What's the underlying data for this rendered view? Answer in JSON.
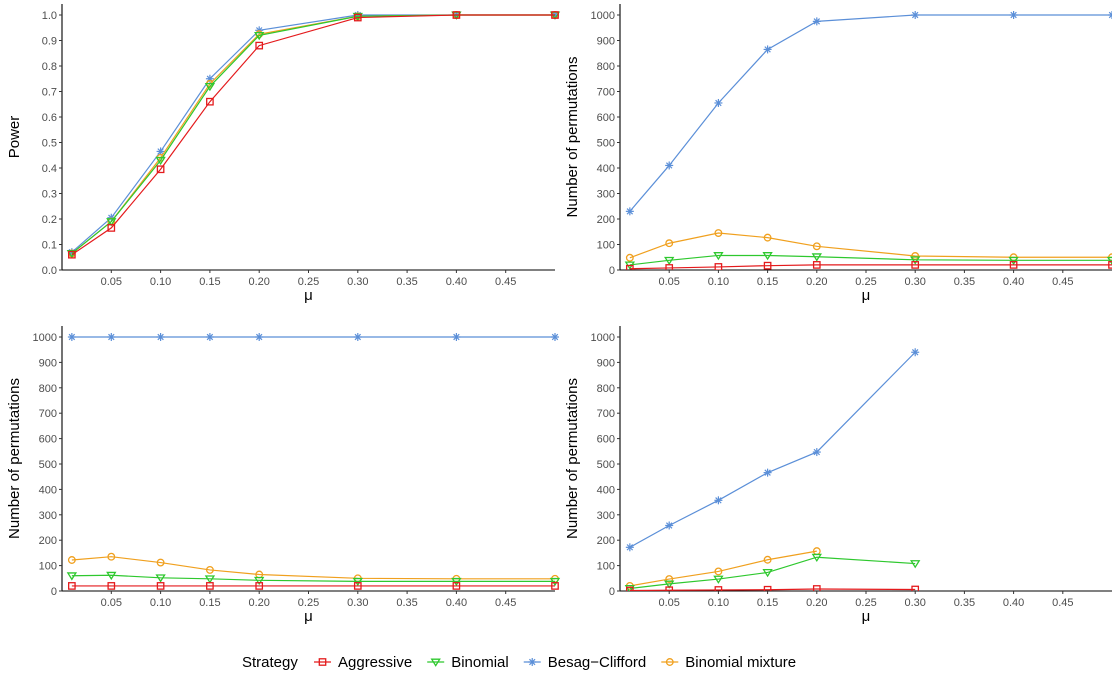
{
  "chart_data": [
    {
      "type": "line",
      "ylabel": "Power",
      "xlabel": "μ",
      "x": [
        0.01,
        0.05,
        0.1,
        0.15,
        0.2,
        0.3,
        0.4,
        0.5
      ],
      "xlim": [
        0.0,
        0.5
      ],
      "ylim": [
        0,
        1.0
      ],
      "xticks": [
        "0.05",
        "0.10",
        "0.15",
        "0.20",
        "0.25",
        "0.30",
        "0.35",
        "0.40",
        "0.45"
      ],
      "yticks": [
        "0.0",
        "0.1",
        "0.2",
        "0.3",
        "0.4",
        "0.5",
        "0.6",
        "0.7",
        "0.8",
        "0.9",
        "1.0"
      ],
      "series": [
        {
          "name": "Aggressive",
          "values": [
            0.06,
            0.165,
            0.395,
            0.66,
            0.88,
            0.99,
            1.0,
            1.0
          ]
        },
        {
          "name": "Binomial",
          "values": [
            0.065,
            0.19,
            0.43,
            0.72,
            0.92,
            0.995,
            1.0,
            1.0
          ]
        },
        {
          "name": "Besag−Clifford",
          "values": [
            0.07,
            0.205,
            0.465,
            0.75,
            0.94,
            1.0,
            1.0,
            1.0
          ]
        },
        {
          "name": "Binomial mixture",
          "values": [
            0.065,
            0.19,
            0.44,
            0.73,
            0.925,
            0.995,
            1.0,
            1.0
          ]
        }
      ]
    },
    {
      "type": "line",
      "ylabel": "Number of permutations",
      "xlabel": "μ",
      "x": [
        0.01,
        0.05,
        0.1,
        0.15,
        0.2,
        0.3,
        0.4,
        0.5
      ],
      "xlim": [
        0.0,
        0.5
      ],
      "ylim": [
        0,
        1000
      ],
      "xticks": [
        "0.05",
        "0.10",
        "0.15",
        "0.20",
        "0.25",
        "0.30",
        "0.35",
        "0.40",
        "0.45"
      ],
      "yticks": [
        "0",
        "100",
        "200",
        "300",
        "400",
        "500",
        "600",
        "700",
        "800",
        "900",
        "1000"
      ],
      "series": [
        {
          "name": "Aggressive",
          "values": [
            5,
            8,
            12,
            17,
            20,
            20,
            20,
            20
          ]
        },
        {
          "name": "Binomial",
          "values": [
            20,
            38,
            57,
            57,
            52,
            40,
            38,
            38
          ]
        },
        {
          "name": "Besag−Clifford",
          "values": [
            230,
            410,
            655,
            865,
            975,
            1000,
            1000,
            1000
          ]
        },
        {
          "name": "Binomial mixture",
          "values": [
            48,
            105,
            145,
            127,
            93,
            55,
            50,
            50
          ]
        }
      ]
    },
    {
      "type": "line",
      "ylabel": "Number of permutations",
      "xlabel": "μ",
      "x": [
        0.01,
        0.05,
        0.1,
        0.15,
        0.2,
        0.3,
        0.4,
        0.5
      ],
      "xlim": [
        0.0,
        0.5
      ],
      "ylim": [
        0,
        1000
      ],
      "xticks": [
        "0.05",
        "0.10",
        "0.15",
        "0.20",
        "0.25",
        "0.30",
        "0.35",
        "0.40",
        "0.45"
      ],
      "yticks": [
        "0",
        "100",
        "200",
        "300",
        "400",
        "500",
        "600",
        "700",
        "800",
        "900",
        "1000"
      ],
      "series": [
        {
          "name": "Aggressive",
          "values": [
            20,
            20,
            20,
            20,
            20,
            20,
            20,
            20
          ]
        },
        {
          "name": "Binomial",
          "values": [
            60,
            62,
            52,
            48,
            42,
            38,
            38,
            38
          ]
        },
        {
          "name": "Besag−Clifford",
          "values": [
            1000,
            1000,
            1000,
            1000,
            1000,
            1000,
            1000,
            1000
          ]
        },
        {
          "name": "Binomial mixture",
          "values": [
            122,
            135,
            112,
            83,
            65,
            50,
            48,
            48
          ]
        }
      ]
    },
    {
      "type": "line",
      "ylabel": "Number of permutations",
      "xlabel": "μ",
      "x": [
        0.01,
        0.05,
        0.1,
        0.15,
        0.2,
        0.3
      ],
      "xlim": [
        0.0,
        0.5
      ],
      "ylim": [
        0,
        1000
      ],
      "xticks": [
        "0.05",
        "0.10",
        "0.15",
        "0.20",
        "0.25",
        "0.30",
        "0.35",
        "0.40",
        "0.45"
      ],
      "yticks": [
        "0",
        "100",
        "200",
        "300",
        "400",
        "500",
        "600",
        "700",
        "800",
        "900",
        "1000"
      ],
      "series": [
        {
          "name": "Aggressive",
          "values": [
            2,
            3,
            4,
            5,
            8,
            6
          ]
        },
        {
          "name": "Binomial",
          "values": [
            10,
            28,
            47,
            73,
            133,
            108
          ]
        },
        {
          "name": "Besag−Clifford",
          "values": [
            172,
            258,
            357,
            466,
            547,
            940
          ]
        },
        {
          "name": "Binomial mixture",
          "values": [
            20,
            47,
            77,
            123,
            157,
            null
          ]
        }
      ]
    }
  ],
  "legend": {
    "title": "Strategy",
    "entries": [
      {
        "name": "Aggressive",
        "color": "#e41a1c",
        "marker": "square"
      },
      {
        "name": "Binomial",
        "color": "#2ec82e",
        "marker": "triangle-down"
      },
      {
        "name": "Besag−Clifford",
        "color": "#5b8fd8",
        "marker": "asterisk"
      },
      {
        "name": "Binomial mixture",
        "color": "#f0a01e",
        "marker": "circle"
      }
    ]
  }
}
